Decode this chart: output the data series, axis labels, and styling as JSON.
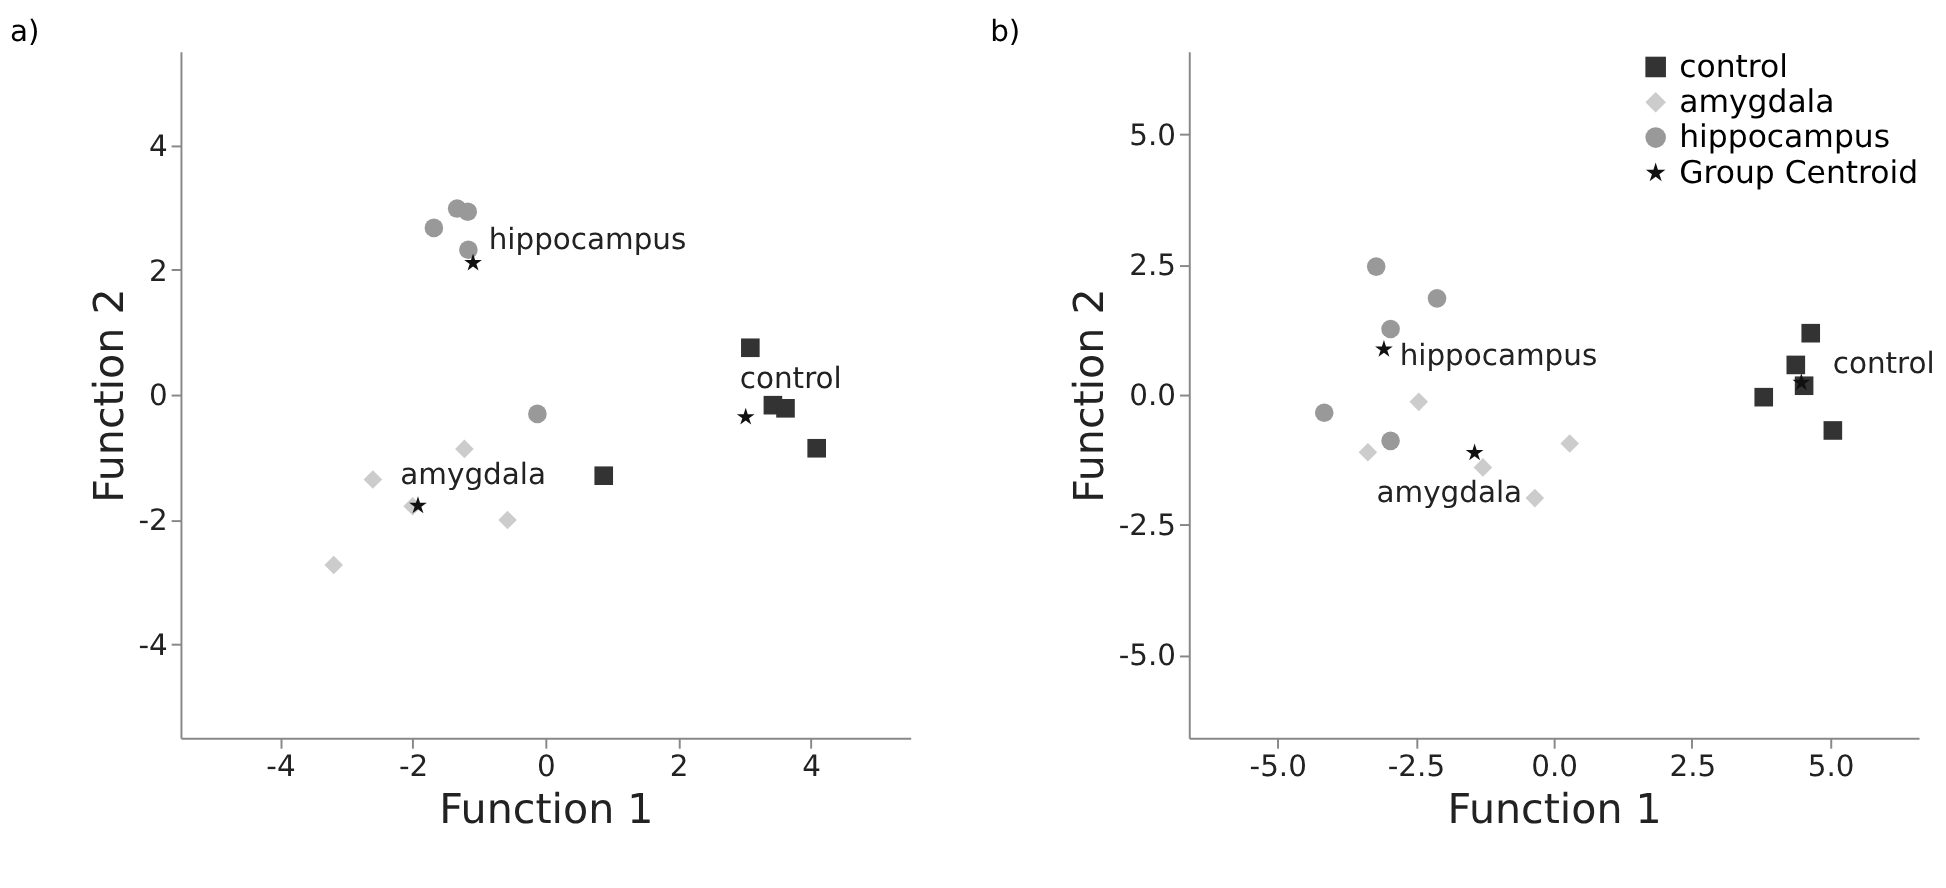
{
  "chart_data": [
    {
      "type": "scatter",
      "title": "a)",
      "xlabel": "Function 1",
      "ylabel": "Function 2",
      "xlim": [
        -5.5,
        5.5
      ],
      "ylim": [
        -5.5,
        5.5
      ],
      "xticks": [
        -4,
        -2,
        0,
        2,
        4
      ],
      "yticks": [
        -4,
        -2,
        0,
        2,
        4
      ],
      "grid": false,
      "legend": false,
      "series": [
        {
          "color": "#333333",
          "marker": "square",
          "x": [
            3.09,
            3.43,
            3.62,
            4.09,
            0.88
          ],
          "values": [
            0.75,
            -0.17,
            -0.22,
            -0.86,
            -1.3
          ]
        },
        {
          "color": "#cccccc",
          "marker": "diamond",
          "x": [
            -2.6,
            -1.22,
            -2.0,
            -0.57,
            -3.19
          ],
          "values": [
            -1.36,
            -0.87,
            -1.79,
            -2.01,
            -2.73
          ]
        },
        {
          "color": "#999999",
          "marker": "circle",
          "x": [
            -1.68,
            -1.33,
            -1.17,
            -1.16,
            -0.12
          ],
          "values": [
            2.67,
            2.98,
            2.93,
            2.32,
            -0.31
          ]
        },
        {
          "color": "#111111",
          "marker": "star",
          "x": [
            -1.09,
            -1.92,
            3.02
          ],
          "values": [
            2.11,
            -1.78,
            -0.36
          ]
        }
      ],
      "annotations": [
        {
          "text": "hippocampus",
          "x": -1.09,
          "y": 2.11
        },
        {
          "text": "control",
          "x": 3.02,
          "y": -0.36
        },
        {
          "text": "amygdala",
          "x": -1.92,
          "y": -1.78
        }
      ]
    },
    {
      "type": "scatter",
      "title": "b)",
      "xlabel": "Function 1",
      "ylabel": "Function 2",
      "xlim": [
        -6.6,
        6.6
      ],
      "ylim": [
        -6.6,
        6.6
      ],
      "xticks": [
        {
          "value": -5,
          "label": "-5.0"
        },
        {
          "value": -2.5,
          "label": "-2.5"
        },
        {
          "value": 0,
          "label": "0.0"
        },
        {
          "value": 2.5,
          "label": "2.5"
        },
        {
          "value": 5,
          "label": "5.0"
        }
      ],
      "yticks": [
        {
          "value": -5,
          "label": "-5.0"
        },
        {
          "value": -2.5,
          "label": "-2.5"
        },
        {
          "value": 0,
          "label": "0.0"
        },
        {
          "value": 2.5,
          "label": "2.5"
        },
        {
          "value": 5,
          "label": "5.0"
        }
      ],
      "grid": false,
      "legend": "top right",
      "series": [
        {
          "name": "control",
          "color": "#333333",
          "marker": "square",
          "x": [
            4.65,
            4.38,
            4.53,
            3.8,
            5.05
          ],
          "values": [
            1.18,
            0.57,
            0.17,
            -0.05,
            -0.69
          ]
        },
        {
          "name": "amygdala",
          "color": "#cccccc",
          "marker": "diamond",
          "x": [
            -2.44,
            -3.36,
            0.29,
            -0.34,
            -1.28
          ],
          "values": [
            -0.14,
            -1.11,
            -0.94,
            -1.99,
            -1.4
          ]
        },
        {
          "name": "hippocampus",
          "color": "#999999",
          "marker": "circle",
          "x": [
            -3.21,
            -2.11,
            -2.95,
            -4.15,
            -2.95
          ],
          "values": [
            2.46,
            1.85,
            1.26,
            -0.35,
            -0.89
          ]
        },
        {
          "name": "Group Centroid",
          "color": "#111111",
          "marker": "star",
          "x": [
            -3.07,
            -1.43,
            4.48
          ],
          "values": [
            0.87,
            -1.12,
            0.23
          ]
        }
      ],
      "annotations": [
        {
          "text": "hippocampus",
          "x": -3.07,
          "y": 0.87
        },
        {
          "text": "control",
          "x": 4.48,
          "y": 0.23
        },
        {
          "text": "amygdala",
          "x": -1.43,
          "y": -1.12
        }
      ]
    }
  ]
}
